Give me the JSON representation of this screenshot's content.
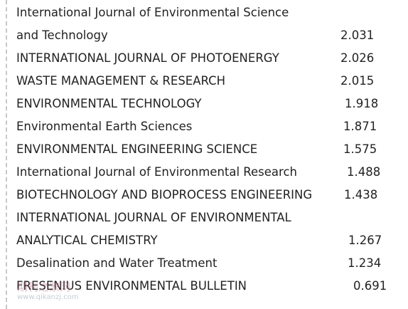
{
  "table": {
    "rows": [
      {
        "name": [
          "International Journal of Environmental Science",
          "and Technology"
        ],
        "value": "2.031"
      },
      {
        "name": [
          "INTERNATIONAL JOURNAL OF PHOTOENERGY"
        ],
        "value": "2.026"
      },
      {
        "name": [
          "WASTE MANAGEMENT & RESEARCH"
        ],
        "value": "2.015"
      },
      {
        "name": [
          "ENVIRONMENTAL TECHNOLOGY"
        ],
        "value": "1.918"
      },
      {
        "name": [
          "Environmental Earth Sciences"
        ],
        "value": "1.871"
      },
      {
        "name": [
          "ENVIRONMENTAL ENGINEERING SCIENCE"
        ],
        "value": "1.575"
      },
      {
        "name": [
          "International Journal of Environmental Research"
        ],
        "value": "1.488"
      },
      {
        "name": [
          "BIOTECHNOLOGY AND BIOPROCESS ENGINEERING"
        ],
        "value": "1.438"
      },
      {
        "name": [
          "INTERNATIONAL JOURNAL OF ENVIRONMENTAL",
          "ANALYTICAL CHEMISTRY"
        ],
        "value": "1.267"
      },
      {
        "name": [
          "Desalination and Water Treatment"
        ],
        "value": "1.234"
      },
      {
        "name": [
          "FRESENIUS ENVIRONMENTAL BULLETIN"
        ],
        "value": "0.691"
      }
    ]
  },
  "watermark": {
    "name": "期刊之家网",
    "url": "www.qikanzj.com"
  }
}
